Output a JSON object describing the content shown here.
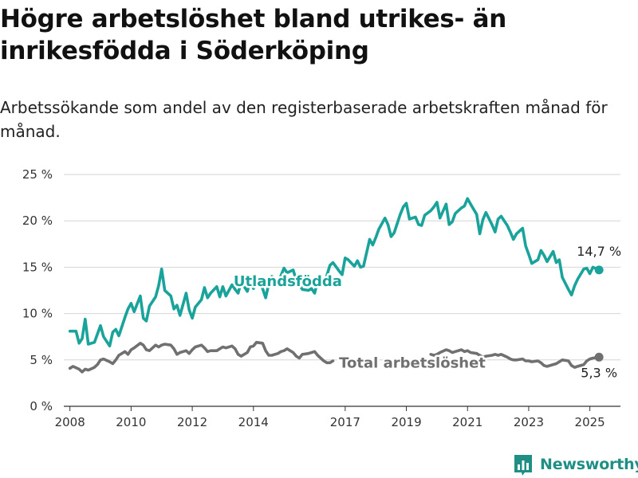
{
  "header": {
    "title": "Högre arbetslöshet bland utrikes- än inrikesfödda i Söderköping",
    "subtitle": "Arbetssökande som andel av den registerbaserade arbetskraften månad för månad."
  },
  "brand": {
    "name": "Newsworthy",
    "color": "#1f8f86"
  },
  "chart_data": {
    "type": "line",
    "xlim": [
      2007.8,
      2026.0
    ],
    "ylim": [
      0,
      25
    ],
    "y_ticks": [
      0,
      5,
      10,
      15,
      20,
      25
    ],
    "y_tick_labels": [
      "0 %",
      "5 %",
      "10 %",
      "15 %",
      "20 %",
      "25 %"
    ],
    "x_ticks": [
      2008,
      2010,
      2012,
      2014,
      2017,
      2019,
      2021,
      2023,
      2025
    ],
    "x_tick_labels": [
      "2008",
      "2010",
      "2012",
      "2014",
      "2017",
      "2019",
      "2021",
      "2023",
      "2025"
    ],
    "grid": true,
    "series": [
      {
        "name": "Utlandsfödda",
        "color": "#1aa39a",
        "end_label": "14,7 %",
        "points": [
          [
            2008.0,
            8.1
          ],
          [
            2008.2,
            8.1
          ],
          [
            2008.3,
            6.8
          ],
          [
            2008.4,
            7.3
          ],
          [
            2008.5,
            9.4
          ],
          [
            2008.6,
            6.7
          ],
          [
            2008.8,
            6.9
          ],
          [
            2008.9,
            7.8
          ],
          [
            2009.0,
            8.7
          ],
          [
            2009.1,
            7.5
          ],
          [
            2009.3,
            6.5
          ],
          [
            2009.4,
            8.0
          ],
          [
            2009.5,
            8.3
          ],
          [
            2009.6,
            7.6
          ],
          [
            2009.8,
            9.6
          ],
          [
            2009.9,
            10.5
          ],
          [
            2010.0,
            11.1
          ],
          [
            2010.1,
            10.2
          ],
          [
            2010.3,
            11.9
          ],
          [
            2010.4,
            9.5
          ],
          [
            2010.5,
            9.2
          ],
          [
            2010.6,
            10.8
          ],
          [
            2010.8,
            11.8
          ],
          [
            2010.9,
            13.0
          ],
          [
            2011.0,
            14.8
          ],
          [
            2011.1,
            12.5
          ],
          [
            2011.3,
            11.9
          ],
          [
            2011.4,
            10.5
          ],
          [
            2011.5,
            10.9
          ],
          [
            2011.6,
            9.8
          ],
          [
            2011.8,
            12.2
          ],
          [
            2011.9,
            10.4
          ],
          [
            2012.0,
            9.5
          ],
          [
            2012.1,
            10.7
          ],
          [
            2012.3,
            11.5
          ],
          [
            2012.4,
            12.8
          ],
          [
            2012.5,
            11.7
          ],
          [
            2012.6,
            12.2
          ],
          [
            2012.8,
            12.9
          ],
          [
            2012.9,
            11.8
          ],
          [
            2013.0,
            12.9
          ],
          [
            2013.1,
            11.9
          ],
          [
            2013.3,
            13.1
          ],
          [
            2013.4,
            12.6
          ],
          [
            2013.5,
            12.2
          ],
          [
            2013.6,
            13.4
          ],
          [
            2013.8,
            12.4
          ],
          [
            2013.9,
            13.5
          ],
          [
            2014.0,
            12.7
          ],
          [
            2014.1,
            13.6
          ],
          [
            2014.3,
            12.7
          ],
          [
            2014.4,
            11.7
          ],
          [
            2014.5,
            13.2
          ],
          [
            2014.6,
            14.0
          ],
          [
            2014.8,
            13.3
          ],
          [
            2014.9,
            14.1
          ],
          [
            2015.0,
            14.9
          ],
          [
            2015.1,
            14.4
          ],
          [
            2015.3,
            14.7
          ],
          [
            2015.4,
            13.6
          ],
          [
            2015.5,
            13.1
          ],
          [
            2015.6,
            12.6
          ],
          [
            2015.8,
            12.5
          ],
          [
            2015.9,
            12.7
          ],
          [
            2016.0,
            12.2
          ],
          [
            2016.1,
            13.5
          ],
          [
            2016.3,
            13.2
          ],
          [
            2016.4,
            14.1
          ],
          [
            2016.5,
            15.2
          ],
          [
            2016.6,
            15.5
          ],
          [
            2016.8,
            14.6
          ],
          [
            2016.9,
            14.2
          ],
          [
            2017.0,
            16.0
          ],
          [
            2017.1,
            15.8
          ],
          [
            2017.3,
            15.1
          ],
          [
            2017.4,
            15.7
          ],
          [
            2017.5,
            15.0
          ],
          [
            2017.6,
            15.1
          ],
          [
            2017.8,
            18.0
          ],
          [
            2017.9,
            17.4
          ],
          [
            2018.0,
            18.2
          ],
          [
            2018.1,
            19.1
          ],
          [
            2018.3,
            20.3
          ],
          [
            2018.4,
            19.6
          ],
          [
            2018.5,
            18.3
          ],
          [
            2018.6,
            18.7
          ],
          [
            2018.8,
            20.7
          ],
          [
            2018.9,
            21.5
          ],
          [
            2019.0,
            21.9
          ],
          [
            2019.1,
            20.2
          ],
          [
            2019.3,
            20.4
          ],
          [
            2019.4,
            19.6
          ],
          [
            2019.5,
            19.5
          ],
          [
            2019.6,
            20.6
          ],
          [
            2019.8,
            21.1
          ],
          [
            2019.9,
            21.5
          ],
          [
            2020.0,
            22.0
          ],
          [
            2020.1,
            20.3
          ],
          [
            2020.3,
            21.8
          ],
          [
            2020.4,
            19.6
          ],
          [
            2020.5,
            19.9
          ],
          [
            2020.6,
            20.8
          ],
          [
            2020.8,
            21.4
          ],
          [
            2020.9,
            21.6
          ],
          [
            2021.0,
            22.4
          ],
          [
            2021.1,
            21.8
          ],
          [
            2021.3,
            20.7
          ],
          [
            2021.4,
            18.6
          ],
          [
            2021.5,
            20.1
          ],
          [
            2021.6,
            20.9
          ],
          [
            2021.8,
            19.6
          ],
          [
            2021.9,
            18.8
          ],
          [
            2022.0,
            20.2
          ],
          [
            2022.1,
            20.5
          ],
          [
            2022.3,
            19.5
          ],
          [
            2022.4,
            18.8
          ],
          [
            2022.5,
            18.0
          ],
          [
            2022.6,
            18.6
          ],
          [
            2022.8,
            19.2
          ],
          [
            2022.9,
            17.3
          ],
          [
            2023.0,
            16.4
          ],
          [
            2023.1,
            15.4
          ],
          [
            2023.3,
            15.8
          ],
          [
            2023.4,
            16.8
          ],
          [
            2023.5,
            16.3
          ],
          [
            2023.6,
            15.6
          ],
          [
            2023.8,
            16.7
          ],
          [
            2023.9,
            15.5
          ],
          [
            2024.0,
            15.8
          ],
          [
            2024.1,
            13.9
          ],
          [
            2024.3,
            12.6
          ],
          [
            2024.4,
            12.0
          ],
          [
            2024.5,
            13.0
          ],
          [
            2024.6,
            13.7
          ],
          [
            2024.8,
            14.8
          ],
          [
            2024.9,
            14.9
          ],
          [
            2025.0,
            14.3
          ],
          [
            2025.1,
            15.0
          ],
          [
            2025.3,
            14.7
          ]
        ]
      },
      {
        "name": "Total arbetslöshet",
        "color": "#707070",
        "end_label": "5,3 %",
        "points": [
          [
            2008.0,
            4.1
          ],
          [
            2008.1,
            4.3
          ],
          [
            2008.3,
            4.0
          ],
          [
            2008.4,
            3.7
          ],
          [
            2008.5,
            4.0
          ],
          [
            2008.6,
            3.9
          ],
          [
            2008.8,
            4.2
          ],
          [
            2008.9,
            4.5
          ],
          [
            2009.0,
            5.0
          ],
          [
            2009.1,
            5.1
          ],
          [
            2009.3,
            4.8
          ],
          [
            2009.4,
            4.6
          ],
          [
            2009.5,
            5.0
          ],
          [
            2009.6,
            5.5
          ],
          [
            2009.8,
            5.9
          ],
          [
            2009.9,
            5.6
          ],
          [
            2010.0,
            6.1
          ],
          [
            2010.1,
            6.3
          ],
          [
            2010.3,
            6.8
          ],
          [
            2010.4,
            6.6
          ],
          [
            2010.5,
            6.1
          ],
          [
            2010.6,
            6.0
          ],
          [
            2010.8,
            6.6
          ],
          [
            2010.9,
            6.4
          ],
          [
            2011.0,
            6.6
          ],
          [
            2011.1,
            6.7
          ],
          [
            2011.3,
            6.6
          ],
          [
            2011.4,
            6.2
          ],
          [
            2011.5,
            5.6
          ],
          [
            2011.6,
            5.8
          ],
          [
            2011.8,
            6.0
          ],
          [
            2011.9,
            5.7
          ],
          [
            2012.0,
            6.1
          ],
          [
            2012.1,
            6.4
          ],
          [
            2012.3,
            6.6
          ],
          [
            2012.4,
            6.3
          ],
          [
            2012.5,
            5.9
          ],
          [
            2012.6,
            6.0
          ],
          [
            2012.8,
            6.0
          ],
          [
            2012.9,
            6.2
          ],
          [
            2013.0,
            6.4
          ],
          [
            2013.1,
            6.3
          ],
          [
            2013.3,
            6.5
          ],
          [
            2013.4,
            6.2
          ],
          [
            2013.5,
            5.6
          ],
          [
            2013.6,
            5.4
          ],
          [
            2013.8,
            5.8
          ],
          [
            2013.9,
            6.4
          ],
          [
            2014.0,
            6.5
          ],
          [
            2014.1,
            6.9
          ],
          [
            2014.3,
            6.8
          ],
          [
            2014.4,
            6.0
          ],
          [
            2014.5,
            5.5
          ],
          [
            2014.6,
            5.5
          ],
          [
            2014.8,
            5.7
          ],
          [
            2014.9,
            5.9
          ],
          [
            2015.0,
            6.0
          ],
          [
            2015.1,
            6.2
          ],
          [
            2015.3,
            5.8
          ],
          [
            2015.4,
            5.4
          ],
          [
            2015.5,
            5.2
          ],
          [
            2015.6,
            5.6
          ],
          [
            2015.8,
            5.7
          ],
          [
            2015.9,
            5.8
          ],
          [
            2016.0,
            5.9
          ],
          [
            2016.1,
            5.5
          ],
          [
            2016.3,
            4.9
          ],
          [
            2016.4,
            4.7
          ],
          [
            2016.5,
            4.7
          ],
          [
            2016.6,
            4.9
          ],
          [
            2019.8,
            5.6
          ],
          [
            2019.9,
            5.5
          ],
          [
            2020.0,
            5.6
          ],
          [
            2020.1,
            5.8
          ],
          [
            2020.3,
            6.1
          ],
          [
            2020.4,
            6.0
          ],
          [
            2020.5,
            5.8
          ],
          [
            2020.6,
            5.9
          ],
          [
            2020.8,
            6.1
          ],
          [
            2020.9,
            5.9
          ],
          [
            2021.0,
            6.0
          ],
          [
            2021.1,
            5.8
          ],
          [
            2021.3,
            5.7
          ],
          [
            2021.4,
            5.5
          ],
          [
            2021.5,
            5.3
          ],
          [
            2021.6,
            5.4
          ],
          [
            2021.8,
            5.5
          ],
          [
            2021.9,
            5.6
          ],
          [
            2022.0,
            5.5
          ],
          [
            2022.1,
            5.6
          ],
          [
            2022.3,
            5.3
          ],
          [
            2022.4,
            5.1
          ],
          [
            2022.5,
            5.0
          ],
          [
            2022.6,
            5.0
          ],
          [
            2022.8,
            5.1
          ],
          [
            2022.9,
            4.9
          ],
          [
            2023.0,
            4.9
          ],
          [
            2023.1,
            4.8
          ],
          [
            2023.3,
            4.9
          ],
          [
            2023.4,
            4.7
          ],
          [
            2023.5,
            4.4
          ],
          [
            2023.6,
            4.3
          ],
          [
            2023.8,
            4.5
          ],
          [
            2023.9,
            4.6
          ],
          [
            2024.0,
            4.8
          ],
          [
            2024.1,
            5.0
          ],
          [
            2024.3,
            4.9
          ],
          [
            2024.4,
            4.4
          ],
          [
            2024.5,
            4.2
          ],
          [
            2024.6,
            4.3
          ],
          [
            2024.8,
            4.5
          ],
          [
            2024.9,
            4.9
          ],
          [
            2025.0,
            5.1
          ],
          [
            2025.1,
            5.2
          ],
          [
            2025.3,
            5.3
          ]
        ]
      }
    ],
    "annotations": [
      {
        "text": "Utlandsfödda",
        "x": 2013.35,
        "y": 13.5,
        "color": "#1aa39a"
      },
      {
        "text": "Total arbetslöshet",
        "x": 2016.8,
        "y": 4.7,
        "color": "#707070"
      }
    ]
  }
}
